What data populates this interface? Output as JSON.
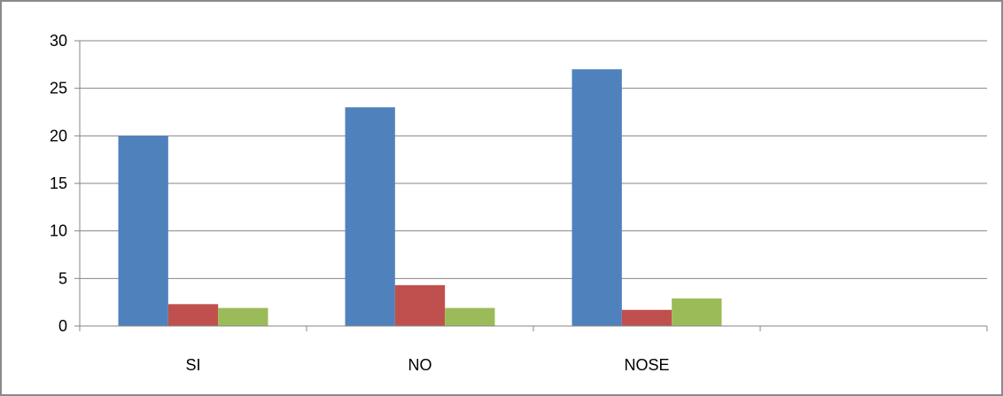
{
  "chart_data": {
    "type": "bar",
    "categories": [
      "SI",
      "NO",
      "NOSE",
      ""
    ],
    "series": [
      {
        "values": [
          20,
          23,
          27,
          null
        ],
        "color": "#4F81BD"
      },
      {
        "values": [
          2.3,
          4.3,
          1.7,
          null
        ],
        "color": "#C0504D"
      },
      {
        "values": [
          1.9,
          1.9,
          2.9,
          null
        ],
        "color": "#9BBB59"
      }
    ],
    "yticks": [
      0,
      5,
      10,
      15,
      20,
      25,
      30
    ],
    "ylim": [
      0,
      30
    ],
    "grid": true,
    "legend": "none",
    "title": "",
    "xlabel": "",
    "ylabel": ""
  }
}
